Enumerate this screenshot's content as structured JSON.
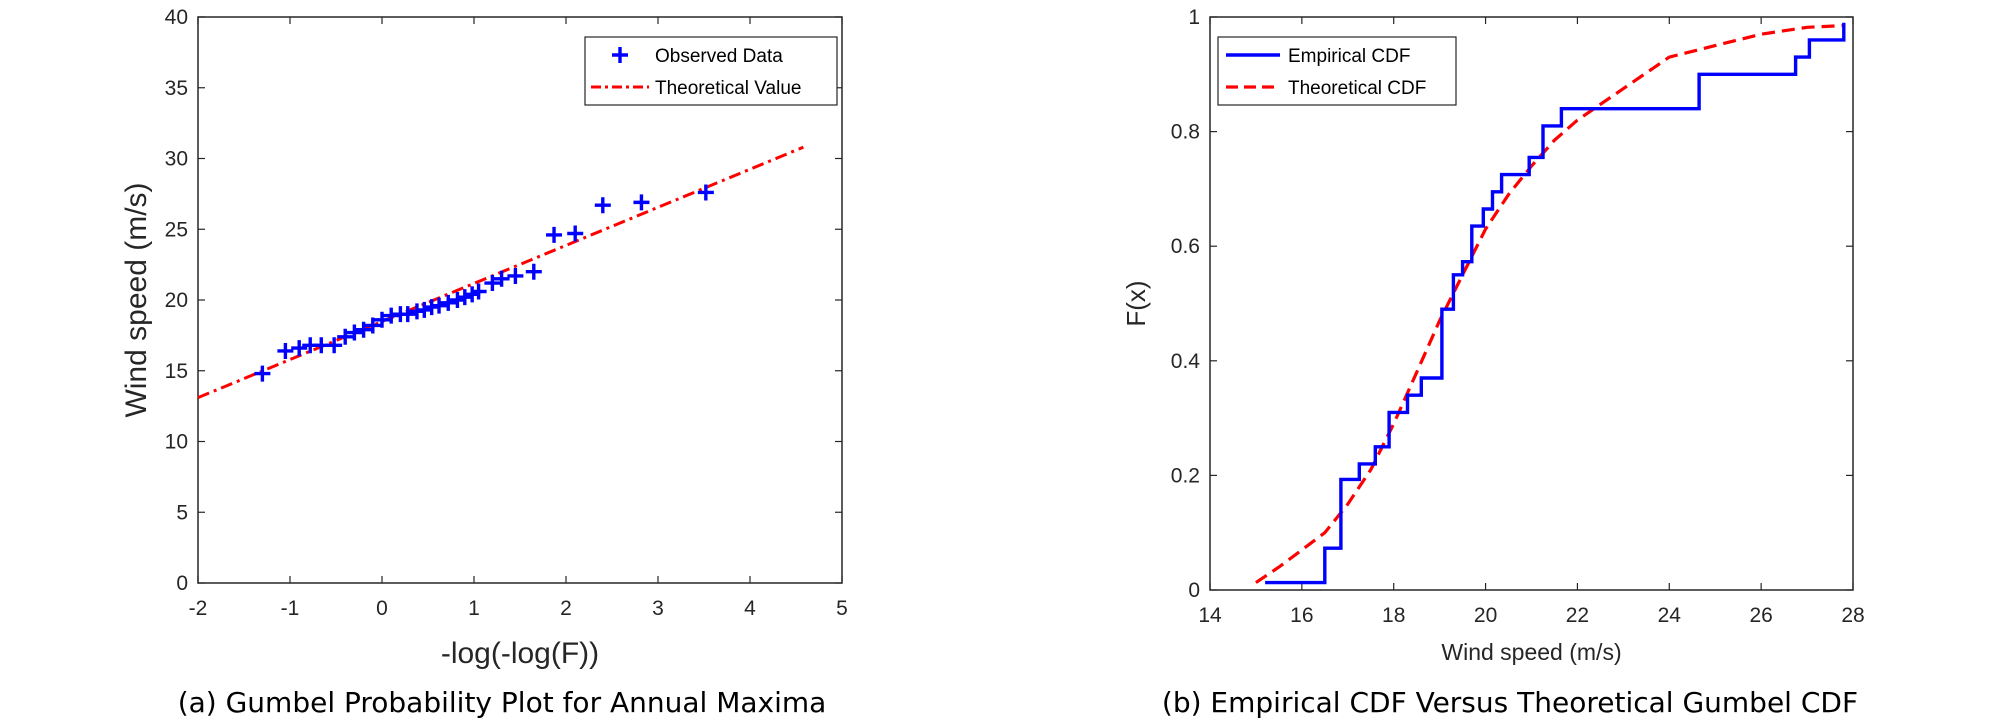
{
  "colors": {
    "observed": "#0000ff",
    "theoretical": "#ff0000",
    "axis": "#262626"
  },
  "chart_data": [
    {
      "type": "scatter",
      "caption": "(a) Gumbel Probability Plot for Annual Maxima",
      "xlabel": "-log(-log(F))",
      "ylabel": "Wind speed (m/s)",
      "xlim": [
        -2,
        5
      ],
      "ylim": [
        0,
        40
      ],
      "xticks": [
        -2,
        -1,
        0,
        1,
        2,
        3,
        4,
        5
      ],
      "yticks": [
        0,
        5,
        10,
        15,
        20,
        25,
        30,
        35,
        40
      ],
      "legend": {
        "position": "top-right",
        "entries": [
          "Observed Data",
          "Theoretical Value"
        ]
      },
      "series": [
        {
          "name": "Observed Data",
          "style": "plus-marker",
          "x": [
            -1.3,
            -1.05,
            -0.9,
            -0.78,
            -0.66,
            -0.52,
            -0.4,
            -0.3,
            -0.2,
            -0.1,
            0.0,
            0.1,
            0.2,
            0.28,
            0.38,
            0.46,
            0.54,
            0.62,
            0.72,
            0.82,
            0.9,
            0.98,
            1.05,
            1.2,
            1.3,
            1.45,
            1.65,
            1.87,
            2.1,
            2.4,
            2.82,
            3.52
          ],
          "y": [
            14.8,
            16.4,
            16.6,
            16.8,
            16.8,
            16.8,
            17.4,
            17.7,
            17.9,
            18.2,
            18.6,
            18.9,
            19.0,
            19.0,
            19.2,
            19.3,
            19.5,
            19.6,
            19.8,
            20.0,
            20.2,
            20.4,
            20.6,
            21.2,
            21.5,
            21.7,
            22.0,
            24.6,
            24.7,
            26.7,
            26.9,
            27.6
          ]
        },
        {
          "name": "Theoretical Value",
          "style": "dash-dot-line",
          "x": [
            -2,
            4.58
          ],
          "y": [
            13.1,
            30.8
          ]
        }
      ]
    },
    {
      "type": "line",
      "caption": "(b) Empirical CDF Versus Theoretical Gumbel CDF",
      "xlabel": "Wind speed (m/s)",
      "ylabel": "F(x)",
      "xlim": [
        14,
        28
      ],
      "ylim": [
        0,
        1
      ],
      "xticks": [
        14,
        16,
        18,
        20,
        22,
        24,
        26,
        28
      ],
      "yticks": [
        0,
        0.2,
        0.4,
        0.6,
        0.8,
        1
      ],
      "legend": {
        "position": "top-left",
        "entries": [
          "Empirical CDF",
          "Theoretical CDF"
        ]
      },
      "series": [
        {
          "name": "Empirical CDF",
          "style": "step",
          "x": [
            15.2,
            16.5,
            16.85,
            17.25,
            17.6,
            17.9,
            18.3,
            18.6,
            19.05,
            19.3,
            19.5,
            19.7,
            19.95,
            20.15,
            20.35,
            20.95,
            21.25,
            21.65,
            22.1,
            24.65,
            26.75,
            27.05,
            27.8
          ],
          "y": [
            0.013,
            0.073,
            0.193,
            0.22,
            0.25,
            0.31,
            0.34,
            0.37,
            0.49,
            0.55,
            0.573,
            0.635,
            0.665,
            0.695,
            0.725,
            0.755,
            0.81,
            0.84,
            0.84,
            0.9,
            0.93,
            0.96,
            0.99
          ]
        },
        {
          "name": "Theoretical CDF",
          "style": "dashed-line",
          "x": [
            15.0,
            15.5,
            16.0,
            16.5,
            17.0,
            17.5,
            18.0,
            18.5,
            19.0,
            19.5,
            20.0,
            20.5,
            21.0,
            21.5,
            22.0,
            23.0,
            24.0,
            25.0,
            26.0,
            27.0,
            27.8
          ],
          "y": [
            0.013,
            0.04,
            0.07,
            0.1,
            0.15,
            0.21,
            0.29,
            0.38,
            0.47,
            0.55,
            0.63,
            0.69,
            0.74,
            0.785,
            0.82,
            0.875,
            0.93,
            0.95,
            0.97,
            0.982,
            0.985
          ]
        }
      ]
    }
  ]
}
